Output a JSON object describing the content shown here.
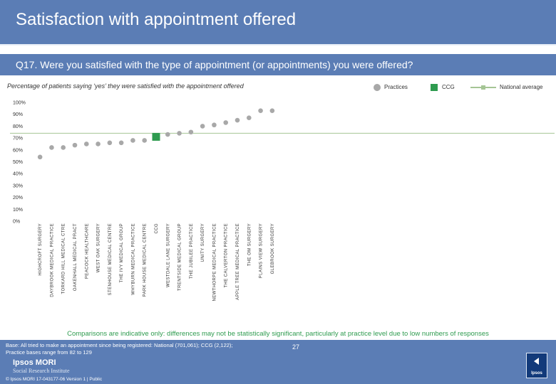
{
  "header": {
    "title": "Satisfaction with appointment offered",
    "question": "Q17. Were you satisfied with the type of appointment (or appointments) you were offered?",
    "subtitle": "Percentage of patients saying ‘yes’ they were satisfied with the appointment offered"
  },
  "legend": {
    "practices": "Practices",
    "ccg": "CCG",
    "national": "National average"
  },
  "note": "Comparisons are indicative only: differences may not be statistically significant, particularly at practice level due to low numbers of responses",
  "footer": {
    "base_line1": "Base: All tried to make an appointment since being registered: National (701,061); CCG (2,122);",
    "base_line2": "Practice bases range from 82 to 129",
    "logo": "Ipsos MORI",
    "logo_sub": "Social Research Institute",
    "copyright": "© Ipsos MORI     17-043177-06 Version 1 | Public",
    "page": "27",
    "brand_box": "Ipsos"
  },
  "colors": {
    "header_bg": "#5b7db5",
    "practice_dot": "#a8a8a8",
    "ccg": "#2e9b4f",
    "national_line": "#a5c595",
    "note_text": "#2e9b4f"
  },
  "chart_data": {
    "type": "scatter",
    "ylim": [
      0,
      100
    ],
    "y_ticks": [
      "0%",
      "10%",
      "20%",
      "30%",
      "40%",
      "50%",
      "60%",
      "70%",
      "80%",
      "90%",
      "100%"
    ],
    "national_average": 74,
    "categories": [
      "HIGHCROFT SURGERY",
      "DAYBROOK MEDICAL PRACTICE",
      "TORKARD HILL MEDICAL CTRE",
      "OAKENHALL MEDICAL PRACT",
      "PEACOCK HEALTHCARE",
      "WEST OAK SURGERY",
      "STENHOUSE MEDICAL CENTRE",
      "THE IVY MEDICAL GROUP",
      "WHYBURN MEDICAL PRACTICE",
      "PARK HOUSE MEDICAL CENTRE",
      "CCG",
      "WESTDALE LANE SURGERY",
      "TRENTSIDE MEDICAL GROUP",
      "THE JUBILEE PRACTICE",
      "UNITY SURGERY",
      "NEWTHORPE MEDICAL PRACTICE",
      "THE CALVERTON PRACTICE",
      "APPLE TREE MEDICAL PRACTICE",
      "THE OM SURGERY",
      "PLAINS VIEW SURGERY",
      "GLEBROOK SURGERY"
    ],
    "values": [
      54,
      62,
      62,
      64,
      65,
      65,
      66,
      66,
      68,
      68,
      71,
      73,
      74,
      75,
      80,
      81,
      83,
      85,
      87,
      93,
      93
    ],
    "ccg_index": 10
  }
}
